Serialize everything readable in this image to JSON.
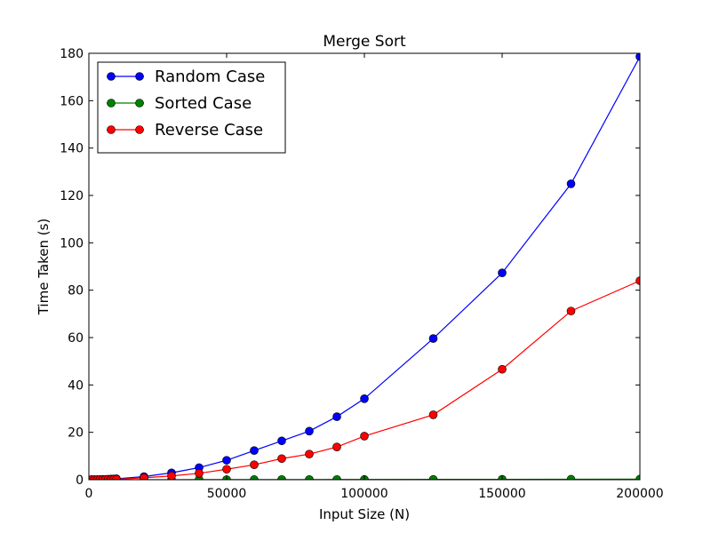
{
  "chart_data": {
    "type": "line",
    "title": "Merge Sort",
    "xlabel": "Input Size (N)",
    "ylabel": "Time Taken (s)",
    "xlim": [
      0,
      200000
    ],
    "ylim": [
      0,
      180
    ],
    "xticks": [
      0,
      50000,
      100000,
      150000,
      200000
    ],
    "xtick_labels": [
      "0",
      "50000",
      "100000",
      "150000",
      "200000"
    ],
    "yticks": [
      0,
      20,
      40,
      60,
      80,
      100,
      120,
      140,
      160,
      180
    ],
    "ytick_labels": [
      "0",
      "20",
      "40",
      "60",
      "80",
      "100",
      "120",
      "140",
      "160",
      "180"
    ],
    "grid": false,
    "legend_position": "top-left",
    "x": [
      1000,
      2000,
      3000,
      4000,
      5000,
      6000,
      7000,
      8000,
      9000,
      10000,
      20000,
      30000,
      40000,
      50000,
      60000,
      70000,
      80000,
      90000,
      100000,
      125000,
      150000,
      175000,
      200000
    ],
    "series": [
      {
        "name": "Random Case",
        "color": "#0000ff",
        "values": [
          0.01,
          0.02,
          0.04,
          0.06,
          0.1,
          0.14,
          0.2,
          0.26,
          0.33,
          0.4,
          1.3,
          2.9,
          5.1,
          8.2,
          12.3,
          16.4,
          20.5,
          26.6,
          34.2,
          59.6,
          87.3,
          124.9,
          178.6
        ]
      },
      {
        "name": "Sorted Case",
        "color": "#008000",
        "values": [
          0.001,
          0.002,
          0.003,
          0.004,
          0.005,
          0.006,
          0.007,
          0.008,
          0.009,
          0.01,
          0.02,
          0.03,
          0.04,
          0.05,
          0.06,
          0.07,
          0.08,
          0.09,
          0.1,
          0.13,
          0.16,
          0.2,
          0.25
        ]
      },
      {
        "name": "Reverse Case",
        "color": "#ff0000",
        "values": [
          0.005,
          0.01,
          0.02,
          0.03,
          0.05,
          0.07,
          0.1,
          0.12,
          0.15,
          0.2,
          0.8,
          1.6,
          2.7,
          4.4,
          6.3,
          8.9,
          10.8,
          13.8,
          18.4,
          27.4,
          46.6,
          71.2,
          84.0
        ]
      }
    ]
  }
}
